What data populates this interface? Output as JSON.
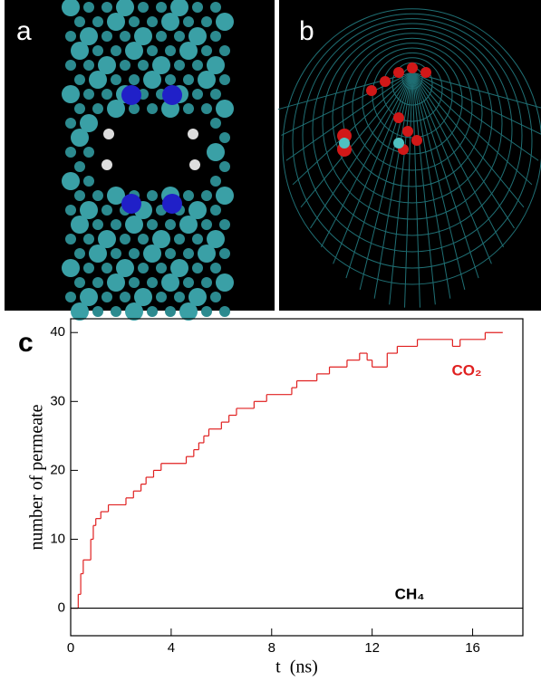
{
  "panels": {
    "a": "a",
    "b": "b"
  },
  "chart_data": {
    "type": "line",
    "panel_label": "c",
    "step": true,
    "xlabel": "t  (ns)",
    "ylabel": "number of permeate",
    "xlim": [
      0,
      18
    ],
    "ylim": [
      -4,
      42
    ],
    "xticks": [
      0,
      4,
      8,
      12,
      16
    ],
    "yticks": [
      0,
      10,
      20,
      30,
      40
    ],
    "series": [
      {
        "name": "CO₂",
        "color": "#e02020",
        "x": [
          0,
          0.2,
          0.3,
          0.4,
          0.5,
          0.8,
          0.9,
          1.0,
          1.2,
          1.5,
          2.2,
          2.5,
          2.8,
          3.0,
          3.3,
          3.6,
          4.6,
          4.9,
          5.1,
          5.3,
          5.5,
          6.0,
          6.3,
          6.6,
          7.3,
          7.8,
          8.8,
          9.0,
          9.8,
          10.3,
          11.0,
          11.5,
          11.8,
          12.0,
          12.6,
          13.0,
          13.8,
          15.2,
          15.5,
          16.5,
          17.2
        ],
        "values": [
          0,
          0,
          2,
          5,
          7,
          10,
          12,
          13,
          14,
          15,
          16,
          17,
          18,
          19,
          20,
          21,
          22,
          23,
          24,
          25,
          26,
          27,
          28,
          29,
          30,
          31,
          32,
          33,
          34,
          35,
          36,
          37,
          36,
          35,
          37,
          38,
          39,
          38,
          39,
          40,
          40
        ]
      },
      {
        "name": "CH₄",
        "color": "#000000",
        "x": [
          0,
          18
        ],
        "values": [
          0,
          0
        ]
      }
    ]
  }
}
